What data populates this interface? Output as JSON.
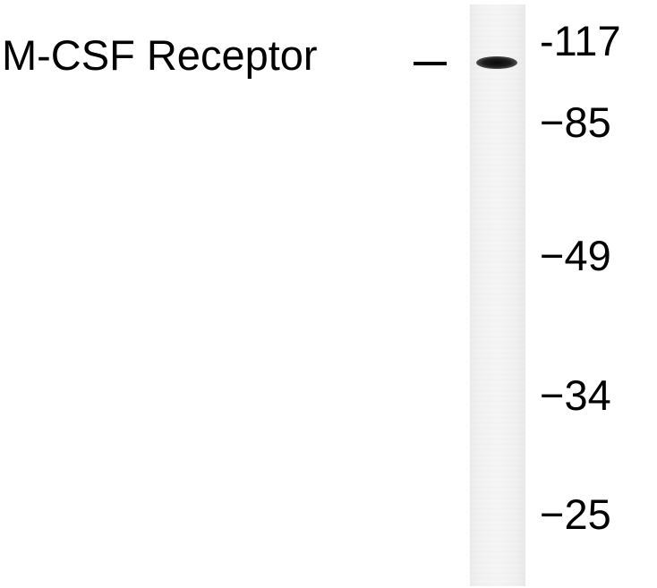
{
  "band_label": "M-CSF Receptor",
  "markers": [
    "-117",
    "−85",
    "−49",
    "−34",
    "−25"
  ],
  "colors": {
    "background": "#ffffff",
    "text": "#000000",
    "lane": "#f3f3f3",
    "band": "#111111"
  }
}
